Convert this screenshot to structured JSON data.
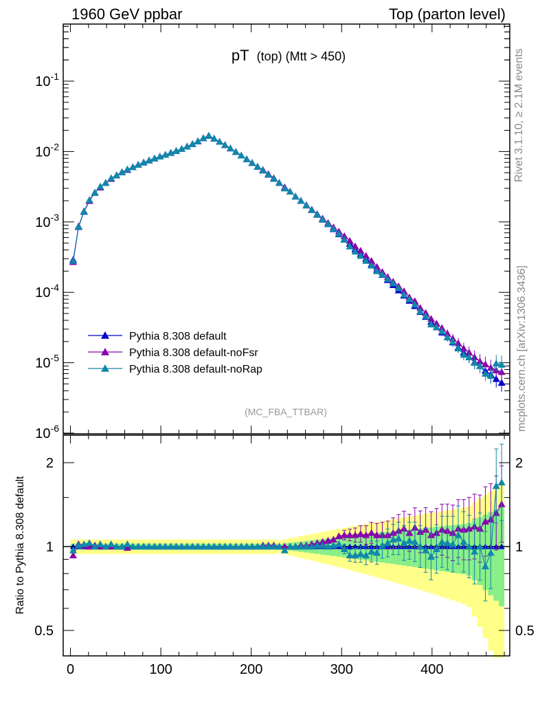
{
  "header": {
    "left": "1960 GeV ppbar",
    "right": "Top (parton level)"
  },
  "title": {
    "main": "pT",
    "sub": "(top) (Mtt > 450)"
  },
  "side_labels": {
    "rivet": "Rivet 3.1.10, ≥ 2.1M events",
    "mcplots": "mcplots.cern.ch [arXiv:1306.3436]"
  },
  "analysis_tag": "(MC_FBA_TTBAR)",
  "ratio_ylabel": "Ratio to Pythia 8.308 default",
  "colors": {
    "default": "#0000cc",
    "noFsr": "#8800aa",
    "noRap": "#1188aa",
    "band_yellow": "#ffff88",
    "band_green": "#88ee88"
  },
  "chart_data": [
    {
      "type": "line",
      "panel": "main",
      "yscale": "log",
      "xlim": [
        -8,
        486
      ],
      "ylim": [
        1e-06,
        0.7
      ],
      "y_tick_labels": [
        "10^-1",
        "10^-2",
        "10^-3",
        "10^-4",
        "10^-5",
        "10^-6"
      ],
      "x": [
        3,
        9,
        15,
        21,
        27,
        33,
        39,
        45,
        51,
        57,
        63,
        69,
        75,
        81,
        87,
        93,
        99,
        105,
        111,
        117,
        123,
        129,
        135,
        141,
        147,
        153,
        159,
        165,
        171,
        177,
        183,
        189,
        195,
        201,
        207,
        213,
        219,
        225,
        231,
        237,
        243,
        249,
        255,
        261,
        267,
        273,
        279,
        285,
        291,
        297,
        303,
        309,
        315,
        321,
        327,
        333,
        339,
        345,
        351,
        357,
        363,
        369,
        375,
        381,
        387,
        393,
        399,
        405,
        411,
        417,
        423,
        429,
        435,
        441,
        447,
        453,
        459,
        465,
        471,
        477
      ],
      "series": [
        {
          "name": "Pythia 8.308 default",
          "marker": "triangle",
          "values": [
            0.00029,
            0.00085,
            0.0014,
            0.002,
            0.0026,
            0.0031,
            0.0036,
            0.0041,
            0.0046,
            0.0051,
            0.0055,
            0.006,
            0.0065,
            0.007,
            0.0075,
            0.008,
            0.0085,
            0.009,
            0.0096,
            0.0102,
            0.0109,
            0.0118,
            0.0128,
            0.014,
            0.0155,
            0.0168,
            0.0153,
            0.0138,
            0.0124,
            0.0111,
            0.0099,
            0.0088,
            0.0078,
            0.0069,
            0.0061,
            0.0054,
            0.0047,
            0.0041,
            0.0036,
            0.0031,
            0.0027,
            0.0023,
            0.002,
            0.00172,
            0.00148,
            0.00127,
            0.00108,
            0.00093,
            0.00079,
            0.00067,
            0.00057,
            0.00049,
            0.00041,
            0.00035,
            0.0003,
            0.00025,
            0.00021,
            0.000178,
            0.00015,
            0.000127,
            0.000107,
            9e-05,
            7.6e-05,
            6.4e-05,
            5.3e-05,
            4.5e-05,
            3.8e-05,
            3.2e-05,
            2.7e-05,
            2.3e-05,
            1.95e-05,
            1.65e-05,
            1.4e-05,
            1.2e-05,
            1.02e-05,
            9e-06,
            7.7e-06,
            6.8e-06,
            5.9e-06,
            5.2e-06
          ]
        },
        {
          "name": "Pythia 8.308 default-noFsr",
          "marker": "triangle",
          "values": [
            0.00027,
            0.00087,
            0.00142,
            0.002,
            0.00262,
            0.0031,
            0.0036,
            0.0041,
            0.0046,
            0.0051,
            0.0055,
            0.006,
            0.0065,
            0.007,
            0.0075,
            0.008,
            0.0085,
            0.009,
            0.0096,
            0.0102,
            0.0109,
            0.0118,
            0.0128,
            0.014,
            0.0155,
            0.0168,
            0.0153,
            0.0138,
            0.0124,
            0.0111,
            0.0099,
            0.0088,
            0.0078,
            0.0069,
            0.0061,
            0.0055,
            0.0048,
            0.0042,
            0.0036,
            0.0031,
            0.0027,
            0.0023,
            0.002,
            0.00174,
            0.0015,
            0.0013,
            0.00112,
            0.00097,
            0.00084,
            0.00073,
            0.00063,
            0.00054,
            0.00045,
            0.00039,
            0.00033,
            0.00028,
            0.00023,
            0.000195,
            0.000165,
            0.000142,
            0.000122,
            0.000104,
            8.5e-05,
            7.5e-05,
            6e-05,
            5.1e-05,
            4.2e-05,
            3.6e-05,
            3.1e-05,
            2.6e-05,
            2.2e-05,
            1.9e-05,
            1.6e-05,
            1.4e-05,
            1.2e-05,
            1.05e-05,
            9.5e-06,
            8.5e-06,
            7.8e-06,
            7.4e-06
          ]
        },
        {
          "name": "Pythia 8.308 default-noRap",
          "marker": "triangle",
          "values": [
            0.00028,
            0.00086,
            0.00142,
            0.00206,
            0.0026,
            0.0032,
            0.0036,
            0.0042,
            0.0046,
            0.0051,
            0.0056,
            0.006,
            0.0065,
            0.007,
            0.0075,
            0.008,
            0.0085,
            0.009,
            0.0096,
            0.0102,
            0.0109,
            0.0118,
            0.0128,
            0.014,
            0.0155,
            0.0168,
            0.0153,
            0.0138,
            0.0124,
            0.0111,
            0.0099,
            0.0088,
            0.0078,
            0.0069,
            0.0061,
            0.0054,
            0.0047,
            0.0041,
            0.0036,
            0.003,
            0.0027,
            0.0023,
            0.002,
            0.00172,
            0.00148,
            0.00128,
            0.00109,
            0.00093,
            0.0008,
            0.00068,
            0.00056,
            0.00045,
            0.00038,
            0.00033,
            0.00028,
            0.00024,
            0.0002,
            0.00018,
            0.000155,
            0.000135,
            0.000115,
            9.3e-05,
            8e-05,
            6.7e-05,
            5.4e-05,
            4.6e-05,
            3.5e-05,
            3.2e-05,
            2.8e-05,
            2.3e-05,
            2e-05,
            1.6e-05,
            1.3e-05,
            1.2e-05,
            1e-05,
            9e-06,
            7e-06,
            6.5e-06,
            9.8e-06,
            9.4e-06
          ]
        }
      ],
      "legend": [
        "Pythia 8.308 default",
        "Pythia 8.308 default-noFsr",
        "Pythia 8.308 default-noRap"
      ],
      "legend_position": "lower-left"
    },
    {
      "type": "line",
      "panel": "ratio",
      "xlim": [
        -8,
        486
      ],
      "ylim": [
        0.35,
        2.3
      ],
      "x_tick_labels": [
        "0",
        "100",
        "200",
        "300",
        "400"
      ],
      "y_tick_labels": [
        "0.5",
        "1",
        "2"
      ],
      "ylabel": "Ratio to Pythia 8.308 default",
      "x": [
        3,
        9,
        15,
        21,
        27,
        33,
        39,
        45,
        51,
        57,
        63,
        69,
        75,
        81,
        87,
        93,
        99,
        105,
        111,
        117,
        123,
        129,
        135,
        141,
        147,
        153,
        159,
        165,
        171,
        177,
        183,
        189,
        195,
        201,
        207,
        213,
        219,
        225,
        231,
        237,
        243,
        249,
        255,
        261,
        267,
        273,
        279,
        285,
        291,
        297,
        303,
        309,
        315,
        321,
        327,
        333,
        339,
        345,
        351,
        357,
        363,
        369,
        375,
        381,
        387,
        393,
        399,
        405,
        411,
        417,
        423,
        429,
        435,
        441,
        447,
        453,
        459,
        465,
        471,
        477
      ],
      "series": [
        {
          "name": "Pythia 8.308 default-noFsr",
          "values": [
            0.93,
            1.02,
            1.01,
            1.0,
            1.01,
            1.0,
            1.0,
            1.0,
            1.0,
            1.0,
            0.99,
            1.0,
            1.0,
            1.0,
            1.0,
            1.0,
            1.0,
            1.0,
            1.0,
            1.0,
            1.0,
            1.0,
            1.0,
            1.0,
            1.0,
            1.0,
            1.0,
            1.0,
            1.0,
            1.0,
            1.0,
            1.0,
            1.0,
            1.0,
            1.0,
            1.01,
            1.01,
            1.01,
            1.0,
            1.0,
            1.0,
            1.0,
            1.01,
            1.01,
            1.02,
            1.03,
            1.04,
            1.05,
            1.06,
            1.09,
            1.1,
            1.1,
            1.1,
            1.11,
            1.1,
            1.12,
            1.1,
            1.1,
            1.1,
            1.12,
            1.14,
            1.16,
            1.12,
            1.17,
            1.13,
            1.15,
            1.1,
            1.12,
            1.15,
            1.14,
            1.12,
            1.16,
            1.15,
            1.16,
            1.18,
            1.16,
            1.23,
            1.25,
            1.32,
            1.42
          ]
        },
        {
          "name": "Pythia 8.308 default-noRap",
          "values": [
            0.97,
            1.01,
            1.02,
            1.03,
            1.0,
            1.02,
            1.0,
            1.02,
            1.0,
            1.0,
            1.02,
            1.0,
            1.0,
            1.0,
            1.0,
            1.0,
            1.0,
            1.0,
            1.0,
            1.0,
            1.0,
            1.0,
            1.0,
            1.0,
            1.0,
            1.0,
            1.0,
            1.0,
            1.0,
            1.0,
            1.0,
            1.0,
            1.0,
            1.0,
            1.0,
            1.0,
            1.0,
            1.0,
            1.0,
            0.97,
            1.0,
            1.0,
            1.0,
            1.0,
            1.0,
            1.01,
            1.01,
            1.0,
            1.01,
            1.02,
            0.98,
            0.93,
            0.93,
            0.94,
            0.93,
            0.96,
            0.95,
            1.01,
            1.03,
            1.06,
            1.07,
            1.03,
            1.05,
            1.04,
            1.0,
            0.97,
            0.92,
            0.98,
            1.04,
            1.03,
            1.02,
            1.1,
            1.04,
            1.0,
            0.96,
            1.0,
            0.85,
            0.95,
            1.65,
            1.7
          ]
        }
      ]
    }
  ]
}
